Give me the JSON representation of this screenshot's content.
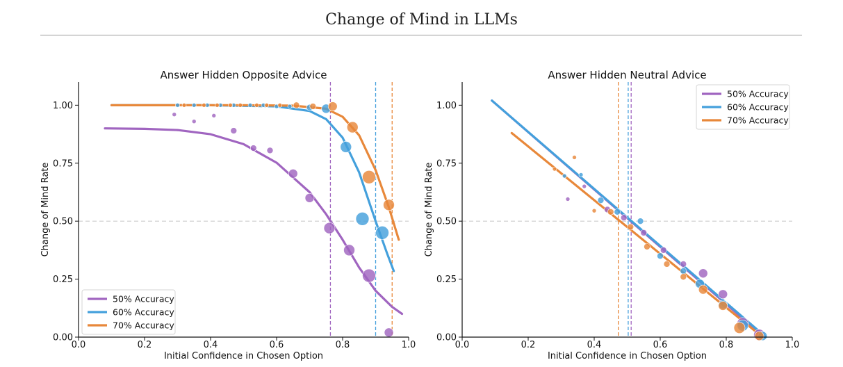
{
  "page": {
    "title": "Change of Mind in LLMs"
  },
  "colors": {
    "s50": "#a065c0",
    "s60": "#44a0dc",
    "s70": "#e8883a",
    "ref": "#cccccc"
  },
  "chart_data": [
    {
      "type": "scatter",
      "title": "Answer Hidden Opposite Advice",
      "xlabel": "Initial Confidence in Chosen Option",
      "ylabel": "Change of Mind Rate",
      "xlim": [
        0.0,
        1.0
      ],
      "ylim": [
        0.0,
        1.1
      ],
      "xticks": [
        "0.0",
        "0.2",
        "0.4",
        "0.6",
        "0.8",
        "1.0"
      ],
      "yticks": [
        "0.00",
        "0.25",
        "0.50",
        "0.75",
        "1.00"
      ],
      "reference_line_y": 0.5,
      "legend_position": "bottom-left",
      "series": [
        {
          "name": "50% Accuracy",
          "color": "#a065c0",
          "fit": [
            [
              0.08,
              0.9
            ],
            [
              0.2,
              0.898
            ],
            [
              0.3,
              0.893
            ],
            [
              0.4,
              0.875
            ],
            [
              0.5,
              0.832
            ],
            [
              0.6,
              0.752
            ],
            [
              0.7,
              0.625
            ],
            [
              0.75,
              0.53
            ],
            [
              0.8,
              0.42
            ],
            [
              0.85,
              0.3
            ],
            [
              0.9,
              0.2
            ],
            [
              0.95,
              0.13
            ],
            [
              0.98,
              0.1
            ]
          ],
          "points": [
            [
              0.29,
              0.96,
              1
            ],
            [
              0.35,
              0.93,
              1
            ],
            [
              0.41,
              0.955,
              1
            ],
            [
              0.47,
              0.89,
              2
            ],
            [
              0.53,
              0.815,
              2
            ],
            [
              0.58,
              0.805,
              2
            ],
            [
              0.65,
              0.705,
              3
            ],
            [
              0.7,
              0.6,
              3
            ],
            [
              0.76,
              0.47,
              4
            ],
            [
              0.82,
              0.375,
              4
            ],
            [
              0.88,
              0.265,
              5
            ],
            [
              0.94,
              0.02,
              3
            ]
          ],
          "vline": 0.763
        },
        {
          "name": "60% Accuracy",
          "color": "#44a0dc",
          "fit": [
            [
              0.1,
              1.0
            ],
            [
              0.4,
              1.0
            ],
            [
              0.6,
              0.995
            ],
            [
              0.7,
              0.975
            ],
            [
              0.75,
              0.94
            ],
            [
              0.8,
              0.86
            ],
            [
              0.85,
              0.71
            ],
            [
              0.9,
              0.5
            ],
            [
              0.935,
              0.36
            ],
            [
              0.955,
              0.285
            ]
          ],
          "points": [
            [
              0.3,
              1.0,
              1
            ],
            [
              0.35,
              1.0,
              1
            ],
            [
              0.39,
              1.0,
              1
            ],
            [
              0.43,
              1.0,
              1
            ],
            [
              0.47,
              1.0,
              1
            ],
            [
              0.52,
              1.0,
              1
            ],
            [
              0.56,
              1.0,
              1
            ],
            [
              0.6,
              0.995,
              1
            ],
            [
              0.64,
              0.995,
              1
            ],
            [
              0.7,
              0.99,
              2
            ],
            [
              0.75,
              0.985,
              3
            ],
            [
              0.81,
              0.82,
              4
            ],
            [
              0.86,
              0.51,
              5
            ],
            [
              0.92,
              0.45,
              5
            ]
          ],
          "vline": 0.9
        },
        {
          "name": "70% Accuracy",
          "color": "#e8883a",
          "fit": [
            [
              0.1,
              1.0
            ],
            [
              0.5,
              1.0
            ],
            [
              0.65,
              0.998
            ],
            [
              0.75,
              0.985
            ],
            [
              0.8,
              0.95
            ],
            [
              0.85,
              0.87
            ],
            [
              0.9,
              0.72
            ],
            [
              0.94,
              0.56
            ],
            [
              0.97,
              0.42
            ]
          ],
          "points": [
            [
              0.32,
              1.0,
              1
            ],
            [
              0.38,
              1.0,
              1
            ],
            [
              0.42,
              1.0,
              1
            ],
            [
              0.46,
              1.0,
              1
            ],
            [
              0.49,
              1.0,
              1
            ],
            [
              0.54,
              1.0,
              1
            ],
            [
              0.57,
              1.0,
              1
            ],
            [
              0.61,
              1.0,
              1
            ],
            [
              0.66,
              1.0,
              2
            ],
            [
              0.71,
              0.995,
              2
            ],
            [
              0.77,
              0.995,
              3
            ],
            [
              0.83,
              0.905,
              4
            ],
            [
              0.88,
              0.69,
              5
            ],
            [
              0.94,
              0.57,
              4
            ]
          ],
          "vline": 0.95
        }
      ]
    },
    {
      "type": "scatter",
      "title": "Answer Hidden Neutral Advice",
      "xlabel": "Initial Confidence in Chosen Option",
      "ylabel": "Change of Mind Rate",
      "xlim": [
        0.0,
        1.0
      ],
      "ylim": [
        0.0,
        1.1
      ],
      "xticks": [
        "0.0",
        "0.2",
        "0.4",
        "0.6",
        "0.8",
        "1.0"
      ],
      "yticks": [
        "0.00",
        "0.25",
        "0.50",
        "0.75",
        "1.00"
      ],
      "reference_line_y": 0.5,
      "legend_position": "top-right",
      "series": [
        {
          "name": "50% Accuracy",
          "color": "#a065c0",
          "fit": [
            [
              0.09,
              1.02
            ],
            [
              0.915,
              0.0
            ]
          ],
          "points": [
            [
              0.32,
              0.595,
              1
            ],
            [
              0.37,
              0.65,
              1
            ],
            [
              0.44,
              0.55,
              2
            ],
            [
              0.49,
              0.515,
              2
            ],
            [
              0.55,
              0.45,
              2
            ],
            [
              0.61,
              0.375,
              2
            ],
            [
              0.67,
              0.315,
              2
            ],
            [
              0.73,
              0.275,
              3
            ],
            [
              0.79,
              0.185,
              3
            ],
            [
              0.85,
              0.06,
              4
            ],
            [
              0.9,
              0.01,
              4
            ]
          ],
          "vline": 0.512
        },
        {
          "name": "60% Accuracy",
          "color": "#44a0dc",
          "fit": [
            [
              0.09,
              1.02
            ],
            [
              0.92,
              0.0
            ]
          ],
          "points": [
            [
              0.31,
              0.695,
              1
            ],
            [
              0.36,
              0.7,
              1
            ],
            [
              0.42,
              0.59,
              2
            ],
            [
              0.47,
              0.54,
              2
            ],
            [
              0.54,
              0.5,
              2
            ],
            [
              0.6,
              0.35,
              2
            ],
            [
              0.67,
              0.285,
              2
            ],
            [
              0.72,
              0.23,
              3
            ],
            [
              0.79,
              0.14,
              3
            ],
            [
              0.85,
              0.05,
              4
            ],
            [
              0.91,
              0.005,
              3
            ]
          ],
          "vline": 0.503
        },
        {
          "name": "70% Accuracy",
          "color": "#e8883a",
          "fit": [
            [
              0.15,
              0.88
            ],
            [
              0.91,
              0.0
            ]
          ],
          "points": [
            [
              0.28,
              0.725,
              1
            ],
            [
              0.34,
              0.775,
              1
            ],
            [
              0.4,
              0.545,
              1
            ],
            [
              0.45,
              0.54,
              2
            ],
            [
              0.51,
              0.475,
              2
            ],
            [
              0.56,
              0.39,
              2
            ],
            [
              0.62,
              0.315,
              2
            ],
            [
              0.67,
              0.26,
              2
            ],
            [
              0.73,
              0.205,
              3
            ],
            [
              0.79,
              0.135,
              3
            ],
            [
              0.84,
              0.04,
              4
            ],
            [
              0.9,
              0.005,
              3
            ]
          ],
          "vline": 0.473
        }
      ]
    }
  ]
}
